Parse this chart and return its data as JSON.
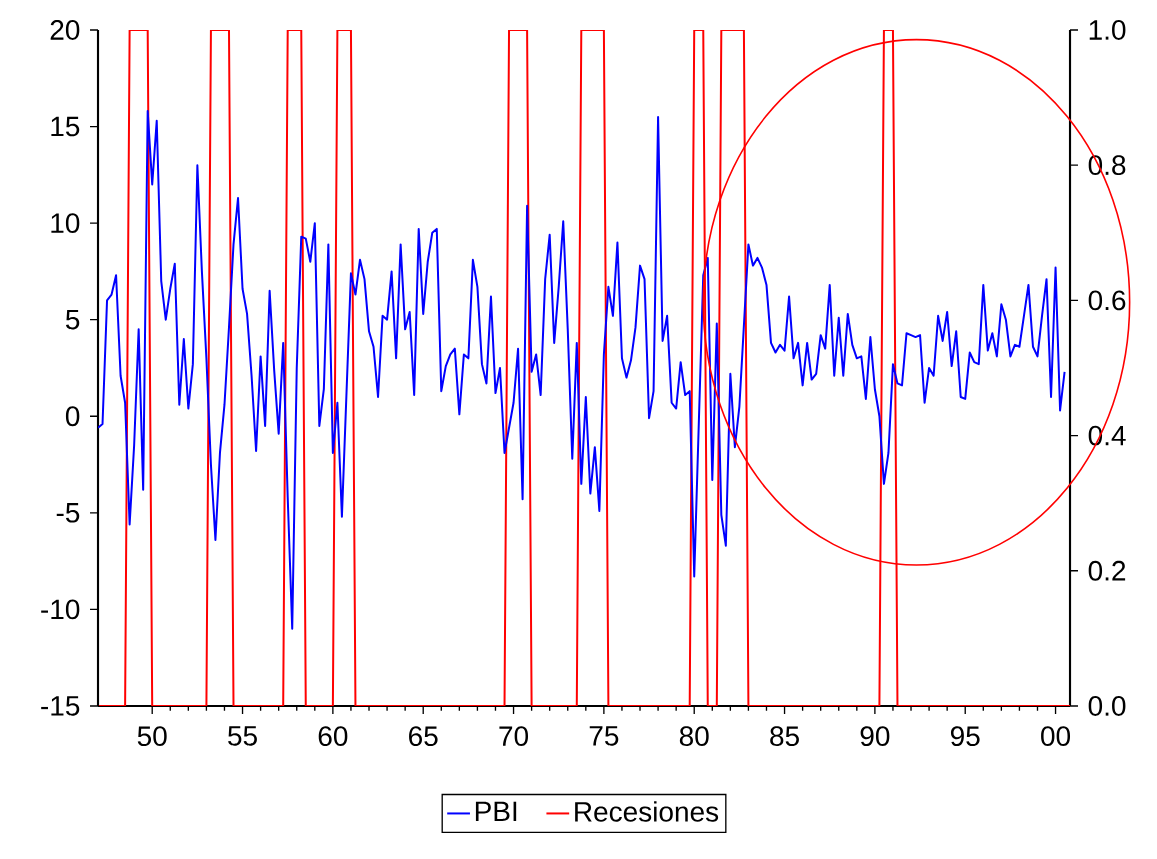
{
  "chart_data": {
    "type": "line",
    "xlim": [
      1947,
      2000.8
    ],
    "xticks": [
      {
        "value": 1950,
        "label": "50"
      },
      {
        "value": 1955,
        "label": "55"
      },
      {
        "value": 1960,
        "label": "60"
      },
      {
        "value": 1965,
        "label": "65"
      },
      {
        "value": 1970,
        "label": "70"
      },
      {
        "value": 1975,
        "label": "75"
      },
      {
        "value": 1980,
        "label": "80"
      },
      {
        "value": 1985,
        "label": "85"
      },
      {
        "value": 1990,
        "label": "90"
      },
      {
        "value": 1995,
        "label": "95"
      },
      {
        "value": 2000,
        "label": "00"
      }
    ],
    "ylim": [
      -15,
      20
    ],
    "yticks": [
      -15,
      -10,
      -5,
      0,
      5,
      10,
      15,
      20
    ],
    "y2lim": [
      0,
      1
    ],
    "y2ticks": [
      {
        "value": 0,
        "label": "0.0"
      },
      {
        "value": 0.2,
        "label": "0.2"
      },
      {
        "value": 0.4,
        "label": "0.4"
      },
      {
        "value": 0.6,
        "label": "0.6"
      },
      {
        "value": 0.8,
        "label": "0.8"
      },
      {
        "value": 1,
        "label": "1.0"
      }
    ],
    "legend": "bottom",
    "marker": "none",
    "line_style": "solid",
    "series": [
      {
        "name": "PBI",
        "color": "#0000ff",
        "x": [
          1947.0,
          1947.25,
          1947.5,
          1947.75,
          1948.0,
          1948.25,
          1948.5,
          1948.75,
          1949.0,
          1949.25,
          1949.5,
          1949.75,
          1950.0,
          1950.25,
          1950.5,
          1950.75,
          1951.0,
          1951.25,
          1951.5,
          1951.75,
          1952.0,
          1952.25,
          1952.5,
          1952.75,
          1953.0,
          1953.25,
          1953.5,
          1953.75,
          1954.0,
          1954.25,
          1954.5,
          1954.75,
          1955.0,
          1955.25,
          1955.5,
          1955.75,
          1956.0,
          1956.25,
          1956.5,
          1956.75,
          1957.0,
          1957.25,
          1957.5,
          1957.75,
          1958.0,
          1958.25,
          1958.5,
          1958.75,
          1959.0,
          1959.25,
          1959.5,
          1959.75,
          1960.0,
          1960.25,
          1960.5,
          1961.0,
          1961.25,
          1961.5,
          1961.75,
          1962.0,
          1962.25,
          1962.5,
          1962.75,
          1963.0,
          1963.25,
          1963.5,
          1963.75,
          1964.0,
          1964.25,
          1964.5,
          1964.75,
          1965.0,
          1965.25,
          1965.5,
          1965.75,
          1966.0,
          1966.25,
          1966.5,
          1966.75,
          1967.0,
          1967.25,
          1967.5,
          1967.75,
          1968.0,
          1968.25,
          1968.5,
          1968.75,
          1969.0,
          1969.25,
          1969.5,
          1970.0,
          1970.25,
          1970.5,
          1970.75,
          1971.0,
          1971.25,
          1971.5,
          1971.75,
          1972.0,
          1972.25,
          1972.5,
          1972.75,
          1973.0,
          1973.25,
          1973.5,
          1973.75,
          1974.0,
          1974.25,
          1974.5,
          1974.75,
          1975.0,
          1975.25,
          1975.5,
          1975.75,
          1976.0,
          1976.25,
          1976.5,
          1976.75,
          1977.0,
          1977.25,
          1977.5,
          1977.75,
          1978.0,
          1978.25,
          1978.5,
          1978.75,
          1979.0,
          1979.25,
          1979.5,
          1979.75,
          1980.0,
          1980.5,
          1980.75,
          1981.0,
          1981.25,
          1981.5,
          1981.75,
          1982.0,
          1982.25,
          1982.5,
          1983.0,
          1983.25,
          1983.5,
          1983.75,
          1984.0,
          1984.25,
          1984.5,
          1984.75,
          1985.0,
          1985.25,
          1985.5,
          1985.75,
          1986.0,
          1986.25,
          1986.5,
          1986.75,
          1987.0,
          1987.25,
          1987.5,
          1987.75,
          1988.0,
          1988.25,
          1988.5,
          1988.75,
          1989.0,
          1989.25,
          1989.5,
          1989.75,
          1990.0,
          1990.25,
          1990.5,
          1990.75,
          1991.0,
          1991.25,
          1991.5,
          1991.75,
          1992.0,
          1992.25,
          1992.5,
          1992.75,
          1993.0,
          1993.25,
          1993.5,
          1993.75,
          1994.0,
          1994.25,
          1994.5,
          1994.75,
          1995.0,
          1995.25,
          1995.5,
          1995.75,
          1996.0,
          1996.25,
          1996.5,
          1996.75,
          1997.0,
          1997.25,
          1997.5,
          1997.75,
          1998.0,
          1998.25,
          1998.5,
          1998.75,
          1999.0,
          1999.25,
          1999.5,
          1999.75,
          2000.0,
          2000.25,
          2000.5
        ],
        "values": [
          -0.6,
          -0.4,
          6.0,
          6.3,
          7.3,
          2.1,
          0.7,
          -5.6,
          -1.5,
          4.5,
          -3.8,
          15.8,
          12.0,
          15.3,
          7.0,
          5.0,
          6.6,
          7.9,
          0.6,
          4.0,
          0.4,
          2.7,
          13.0,
          7.5,
          3.0,
          -2.5,
          -6.4,
          -1.9,
          0.6,
          4.6,
          8.9,
          11.3,
          6.6,
          5.3,
          2.1,
          -1.8,
          3.1,
          -0.5,
          6.5,
          2.4,
          -0.9,
          3.8,
          -4.2,
          -11.0,
          2.5,
          9.3,
          9.2,
          8.0,
          10.0,
          -0.5,
          1.4,
          8.9,
          -1.9,
          0.7,
          -5.2,
          7.4,
          6.3,
          8.1,
          7.1,
          4.4,
          3.6,
          1.0,
          5.2,
          5.0,
          7.5,
          3.0,
          8.9,
          4.5,
          5.4,
          1.1,
          9.7,
          5.3,
          8.0,
          9.5,
          9.7,
          1.3,
          2.6,
          3.2,
          3.5,
          0.1,
          3.2,
          3.0,
          8.1,
          6.7,
          2.7,
          1.7,
          6.2,
          1.2,
          2.5,
          -1.9,
          0.7,
          3.5,
          -4.3,
          10.9,
          2.3,
          3.2,
          1.1,
          7.1,
          9.4,
          3.8,
          6.7,
          10.1,
          4.5,
          -2.2,
          3.8,
          -3.5,
          1.0,
          -4.0,
          -1.6,
          -4.9,
          3.2,
          6.7,
          5.2,
          9.0,
          3.0,
          2.0,
          2.9,
          4.6,
          7.8,
          7.1,
          -0.1,
          1.3,
          15.5,
          3.9,
          5.2,
          0.7,
          0.4,
          2.8,
          1.1,
          1.3,
          -8.3,
          7.3,
          8.2,
          -3.3,
          4.8,
          -5.1,
          -6.7,
          2.2,
          -1.6,
          0.5,
          8.9,
          7.8,
          8.2,
          7.7,
          6.8,
          3.8,
          3.3,
          3.7,
          3.4,
          6.2,
          3.0,
          3.8,
          1.6,
          3.8,
          1.9,
          2.2,
          4.2,
          3.5,
          6.8,
          2.1,
          5.1,
          2.1,
          5.3,
          3.7,
          3.0,
          3.1,
          0.9,
          4.1,
          1.4,
          0.0,
          -3.5,
          -1.9,
          2.7,
          1.7,
          1.6,
          4.3,
          4.2,
          4.1,
          4.2,
          0.7,
          2.5,
          2.1,
          5.2,
          3.9,
          5.4,
          2.6,
          4.4,
          1.0,
          0.9,
          3.3,
          2.8,
          2.7,
          6.8,
          3.4,
          4.3,
          3.1,
          5.8,
          5.0,
          3.1,
          3.7,
          3.6,
          5.2,
          6.8,
          3.6,
          3.1,
          5.2,
          7.1,
          1.0,
          7.7,
          0.3,
          2.3
        ]
      },
      {
        "name": "Recesiones",
        "color": "#ff0000",
        "axis": "y2",
        "x": [
          1947.0,
          1948.5,
          1948.75,
          1949.75,
          1950.0,
          1953.0,
          1953.25,
          1954.25,
          1954.5,
          1957.25,
          1957.5,
          1958.25,
          1958.5,
          1960.0,
          1960.25,
          1961.0,
          1961.25,
          1969.5,
          1969.75,
          1970.75,
          1971.0,
          1973.5,
          1973.75,
          1975.0,
          1975.25,
          1979.75,
          1980.0,
          1980.5,
          1980.75,
          1981.25,
          1981.5,
          1982.75,
          1983.0,
          1990.25,
          1990.5,
          1991.0,
          1991.25,
          2000.8
        ],
        "values": [
          0,
          0,
          1,
          1,
          0,
          0,
          1,
          1,
          0,
          0,
          1,
          1,
          0,
          0,
          1,
          1,
          0,
          0,
          1,
          1,
          0,
          0,
          1,
          1,
          0,
          0,
          1,
          1,
          0,
          0,
          1,
          1,
          0,
          0,
          1,
          1,
          0,
          0
        ]
      }
    ]
  }
}
